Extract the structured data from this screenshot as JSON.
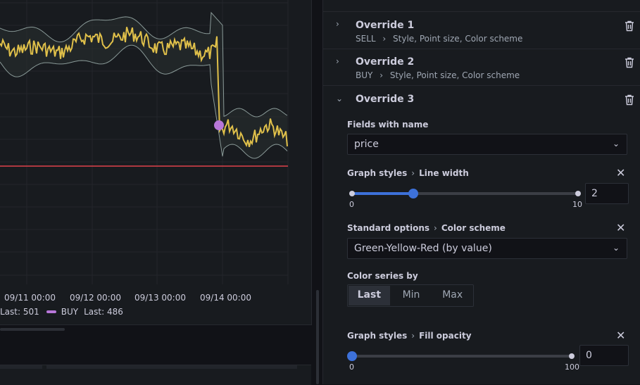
{
  "chart": {
    "x_labels": [
      "09/11 00:00",
      "09/12 00:00",
      "09/13 00:00",
      "09/14 00:00"
    ],
    "legend": [
      {
        "name": "",
        "last_label": "Last: 501",
        "color": "#fade2a"
      },
      {
        "name": "BUY",
        "last_label": "Last: 486",
        "color": "#b877d9"
      }
    ],
    "colors": {
      "price_line": "#e0c04a",
      "band": "#8a9a98",
      "threshold": "#e0424b",
      "marker": "#b877d9"
    }
  },
  "overrides": [
    {
      "title": "Override 1",
      "field": "SELL",
      "props": "Style, Point size, Color scheme",
      "expanded": false
    },
    {
      "title": "Override 2",
      "field": "BUY",
      "props": "Style, Point size, Color scheme",
      "expanded": false
    },
    {
      "title": "Override 3",
      "expanded": true
    }
  ],
  "override3": {
    "matcher_label": "Fields with name",
    "matcher_value": "price",
    "line_width": {
      "group": "Graph styles",
      "prop": "Line width",
      "min": "0",
      "max": "10",
      "value": "2",
      "fraction": 0.2
    },
    "color_scheme": {
      "group": "Standard options",
      "prop": "Color scheme",
      "value": "Green-Yellow-Red (by value)"
    },
    "color_series_by": {
      "label": "Color series by",
      "options": [
        "Last",
        "Min",
        "Max"
      ],
      "selected": "Last"
    },
    "fill_opacity": {
      "group": "Graph styles",
      "prop": "Fill opacity",
      "min": "0",
      "max": "100",
      "value": "0",
      "fraction": 0.0
    }
  },
  "icons": {
    "chevron_right": "›",
    "chevron_down": "⌄",
    "close": "✕",
    "separator": "›"
  }
}
